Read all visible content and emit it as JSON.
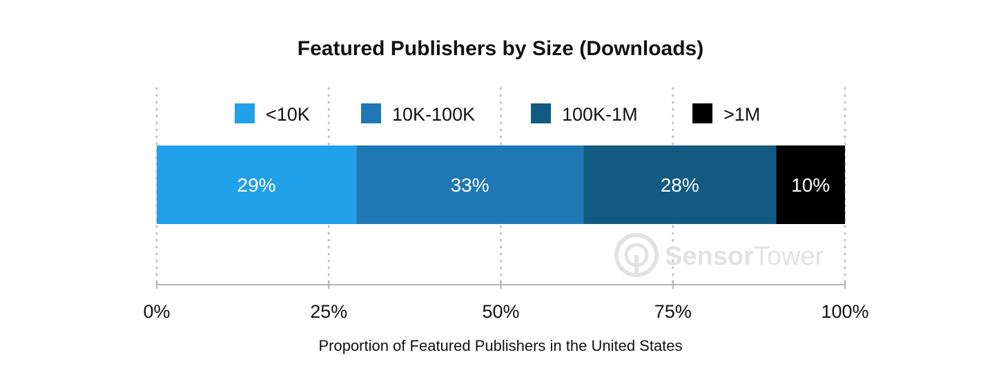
{
  "chart_data": {
    "type": "bar",
    "orientation": "horizontal",
    "stacked": true,
    "title": "Featured Publishers by Size (Downloads)",
    "xlabel": "Proportion of Featured Publishers in the United States",
    "ylabel": "",
    "xlim": [
      0,
      100
    ],
    "x_ticks": [
      "0%",
      "25%",
      "50%",
      "75%",
      "100%"
    ],
    "x_tick_values": [
      0,
      25,
      50,
      75,
      100
    ],
    "grid": true,
    "legend_position": "top",
    "series": [
      {
        "name": "<10K",
        "value": 29,
        "label": "29%",
        "color": "#22a0ea"
      },
      {
        "name": "10K-100K",
        "value": 33,
        "label": "33%",
        "color": "#1f77b4"
      },
      {
        "name": "100K-1M",
        "value": 28,
        "label": "28%",
        "color": "#135a82"
      },
      {
        "name": ">1M",
        "value": 10,
        "label": "10%",
        "color": "#000000"
      }
    ]
  },
  "watermark": {
    "brand_part1": "Sensor",
    "brand_part2": "Tower",
    "icon": "sensortower-logo-icon"
  }
}
